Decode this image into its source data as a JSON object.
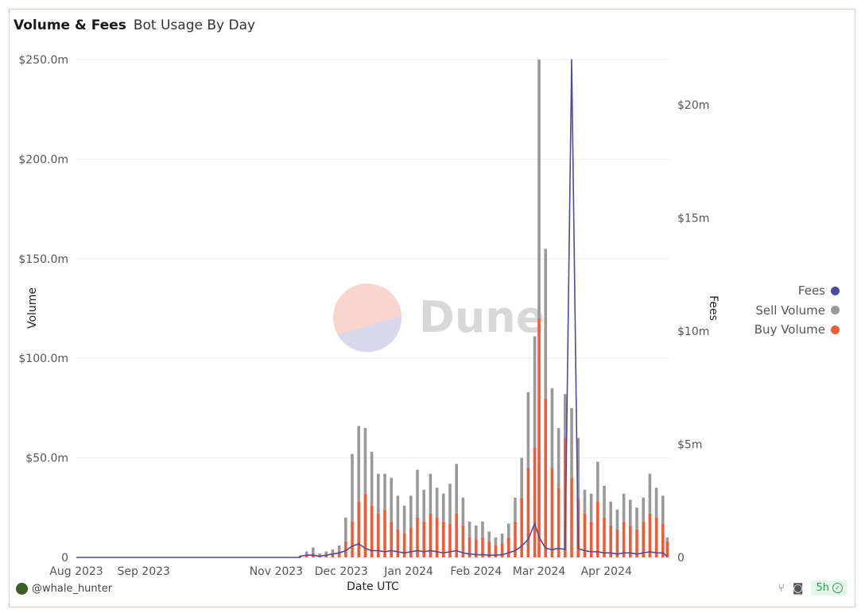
{
  "header": {
    "title": "Volume & Fees",
    "subtitle": "Bot Usage By Day"
  },
  "footer": {
    "user": "@whale_hunter",
    "refresh_badge": "5h"
  },
  "icons": {
    "fork": "fork-icon",
    "camera": "camera-icon",
    "check": "check-circle-icon"
  },
  "watermark": "Dune",
  "colors": {
    "fees": "#4b4ba2",
    "sell": "#999999",
    "buy": "#f15a37",
    "background": "#ffffff"
  },
  "chart_data": {
    "type": "bar",
    "xlabel": "Date UTC",
    "ylabel": "Volume",
    "y2label": "Fees",
    "x_tick_labels": [
      "Aug 2023",
      "Sep 2023",
      "Nov 2023",
      "Dec 2023",
      "Jan 2024",
      "Feb 2024",
      "Mar 2024",
      "Apr 2024"
    ],
    "x_tick_dates": [
      "2023-08-01",
      "2023-09-01",
      "2023-11-01",
      "2023-12-01",
      "2024-01-01",
      "2024-02-01",
      "2024-03-01",
      "2024-04-01"
    ],
    "x_range": [
      "2023-08-01",
      "2024-04-30"
    ],
    "y_ticks": [
      "0",
      "$50.0m",
      "$100.0m",
      "$150.0m",
      "$200.0m",
      "$250.0m"
    ],
    "y_tick_values": [
      0,
      50,
      100,
      150,
      200,
      250
    ],
    "ylim": [
      0,
      250
    ],
    "y2_ticks": [
      "0",
      "$5m",
      "$10m",
      "$15m",
      "$20m"
    ],
    "y2_tick_values": [
      0,
      5,
      10,
      15,
      20
    ],
    "y2lim": [
      0,
      22
    ],
    "legend": [
      "Fees",
      "Sell Volume",
      "Buy Volume"
    ],
    "legend_position": "right",
    "stacked": true,
    "grid": true,
    "dates": [
      "2023-11-12",
      "2023-11-15",
      "2023-11-18",
      "2023-11-21",
      "2023-11-24",
      "2023-11-27",
      "2023-11-30",
      "2023-12-03",
      "2023-12-06",
      "2023-12-09",
      "2023-12-12",
      "2023-12-15",
      "2023-12-18",
      "2023-12-21",
      "2023-12-24",
      "2023-12-27",
      "2023-12-30",
      "2024-01-02",
      "2024-01-05",
      "2024-01-08",
      "2024-01-11",
      "2024-01-14",
      "2024-01-17",
      "2024-01-20",
      "2024-01-23",
      "2024-01-26",
      "2024-01-29",
      "2024-02-01",
      "2024-02-04",
      "2024-02-07",
      "2024-02-10",
      "2024-02-13",
      "2024-02-16",
      "2024-02-19",
      "2024-02-22",
      "2024-02-25",
      "2024-02-28",
      "2024-03-01",
      "2024-03-04",
      "2024-03-07",
      "2024-03-10",
      "2024-03-13",
      "2024-03-16",
      "2024-03-19",
      "2024-03-22",
      "2024-03-25",
      "2024-03-28",
      "2024-03-31",
      "2024-04-03",
      "2024-04-06",
      "2024-04-09",
      "2024-04-12",
      "2024-04-15",
      "2024-04-18",
      "2024-04-21",
      "2024-04-24",
      "2024-04-27",
      "2024-04-29"
    ],
    "series": [
      {
        "name": "Buy Volume",
        "values": [
          0.5,
          1.5,
          2,
          1,
          1.5,
          2,
          3,
          8,
          18,
          28,
          32,
          26,
          22,
          24,
          18,
          14,
          12,
          15,
          20,
          18,
          22,
          20,
          18,
          17,
          22,
          16,
          10,
          9,
          10,
          8,
          6,
          7,
          10,
          18,
          30,
          45,
          55,
          120,
          80,
          45,
          35,
          60,
          40,
          30,
          22,
          18,
          28,
          20,
          16,
          14,
          18,
          16,
          14,
          18,
          22,
          20,
          17,
          8
        ]
      },
      {
        "name": "Sell Volume",
        "values": [
          0.5,
          1.5,
          3,
          1,
          1.5,
          2,
          3,
          12,
          34,
          38,
          33,
          27,
          20,
          18,
          22,
          17,
          14,
          16,
          24,
          16,
          20,
          15,
          14,
          20,
          25,
          14,
          8,
          7,
          8,
          5,
          4,
          5,
          7,
          12,
          20,
          38,
          56,
          130,
          75,
          40,
          30,
          22,
          35,
          30,
          12,
          14,
          20,
          16,
          12,
          10,
          14,
          13,
          11,
          12,
          20,
          15,
          14,
          2
        ]
      },
      {
        "name": "Fees",
        "values": [
          0.05,
          0.1,
          0.1,
          0.05,
          0.1,
          0.15,
          0.2,
          0.3,
          0.5,
          0.6,
          0.4,
          0.3,
          0.3,
          0.25,
          0.3,
          0.25,
          0.2,
          0.25,
          0.3,
          0.25,
          0.3,
          0.25,
          0.2,
          0.25,
          0.3,
          0.2,
          0.15,
          0.12,
          0.12,
          0.1,
          0.1,
          0.12,
          0.2,
          0.3,
          0.5,
          0.8,
          1.5,
          0.9,
          0.4,
          0.35,
          0.4,
          0.35,
          22,
          0.4,
          0.3,
          0.25,
          0.25,
          0.2,
          0.2,
          0.15,
          0.2,
          0.2,
          0.15,
          0.2,
          0.25,
          0.2,
          0.2,
          0.05
        ]
      }
    ]
  }
}
